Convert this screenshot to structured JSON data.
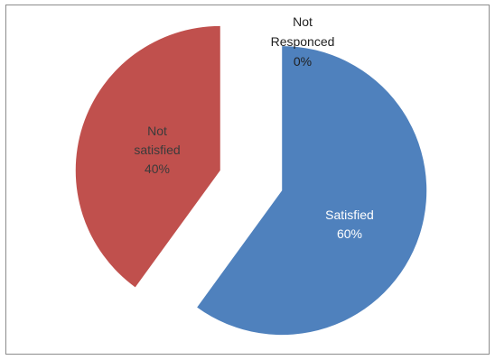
{
  "chart_data": {
    "type": "pie",
    "title": "",
    "slices": [
      {
        "name": "Satisfied",
        "value": 60,
        "percent_label": "60%",
        "color": "#4f81bd",
        "label_color": "#ffffff",
        "exploded": true
      },
      {
        "name": "Not satisfied",
        "value": 40,
        "percent_label": "40%",
        "color": "#c0504d",
        "label_color": "#3b3b3b",
        "exploded": true
      },
      {
        "name": "Not Responced",
        "value": 0,
        "percent_label": "0%",
        "color": "#9bbb59",
        "label_color": "#1f1f1f",
        "exploded": false
      }
    ],
    "legend": "none",
    "start_angle_deg": 0,
    "direction": "clockwise"
  }
}
